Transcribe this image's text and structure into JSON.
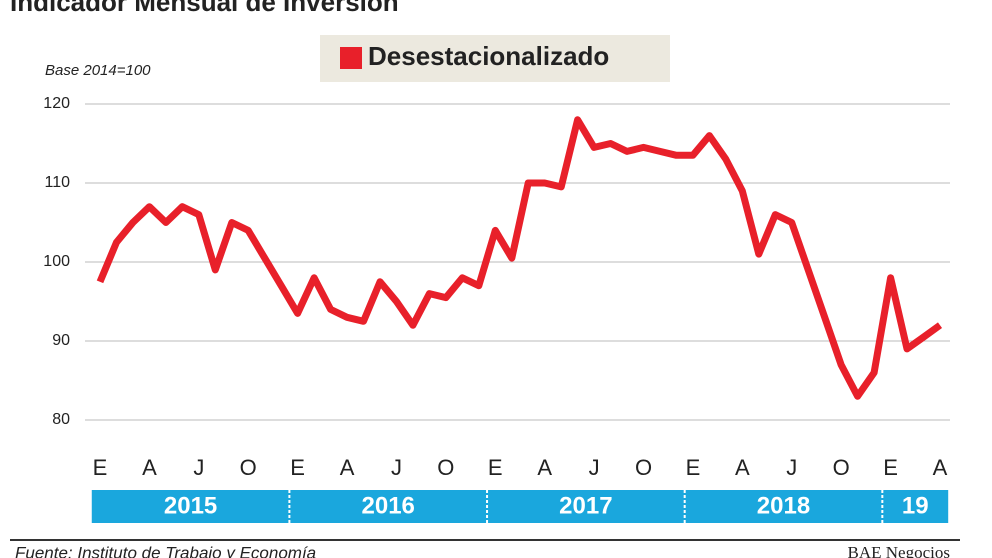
{
  "chart_data": {
    "type": "line",
    "title": "Indicador Mensual de Inversión",
    "subtitle": "Base 2014=100",
    "categories": [
      "E",
      null,
      null,
      "A",
      null,
      null,
      "J",
      null,
      null,
      "O",
      null,
      null,
      "E",
      null,
      null,
      "A",
      null,
      null,
      "J",
      null,
      null,
      "O",
      null,
      null,
      "E",
      null,
      null,
      "A",
      null,
      null,
      "J",
      null,
      null,
      "O",
      null,
      null,
      "E",
      null,
      null,
      "A",
      null,
      null,
      "J",
      null,
      null,
      "O",
      null,
      null,
      "E",
      null,
      null,
      "A"
    ],
    "years": [
      "2015",
      "2016",
      "2017",
      "2018",
      "19"
    ],
    "series": [
      {
        "name": "Desestacionalizado",
        "color": "#e8202a",
        "values": [
          97.5,
          102.5,
          105,
          107,
          105,
          107,
          106,
          99,
          105,
          104,
          100.5,
          97,
          93.5,
          98,
          94,
          93,
          92.5,
          97.5,
          95,
          92,
          96,
          95.5,
          98,
          97,
          104,
          100.5,
          110,
          110,
          109.5,
          118,
          114.5,
          115,
          114,
          114.5,
          114,
          113.5,
          113.5,
          116,
          113,
          109,
          101,
          106,
          105,
          99,
          93,
          87,
          83,
          86,
          98,
          89,
          90.5,
          92
        ]
      }
    ],
    "ylim": [
      80,
      120
    ],
    "yticks": [
      80,
      90,
      100,
      110,
      120
    ],
    "grid": true,
    "source": "Fuente: Instituto de Trabajo y Economía",
    "credit": "BAE Negocios"
  }
}
